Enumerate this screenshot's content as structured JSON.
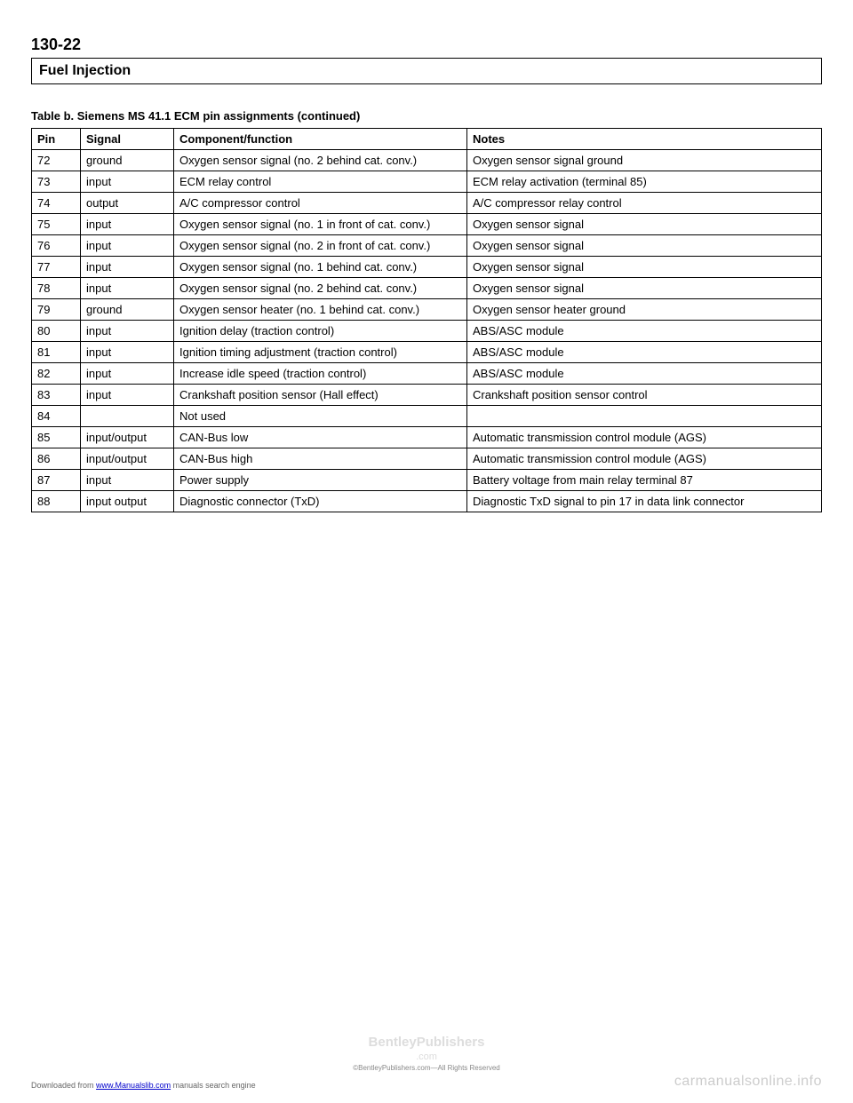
{
  "pageNumber": "130-22",
  "sectionTitle": "Fuel Injection",
  "tableCaption": "Table b. Siemens MS 41.1 ECM pin assignments (continued)",
  "columns": [
    "Pin",
    "Signal",
    "Component/function",
    "Notes"
  ],
  "rows": [
    [
      "72",
      "ground",
      "Oxygen sensor signal (no. 2 behind cat. conv.)",
      "Oxygen sensor signal ground"
    ],
    [
      "73",
      "input",
      "ECM relay control",
      "ECM relay activation (terminal 85)"
    ],
    [
      "74",
      "output",
      "A/C compressor control",
      "A/C compressor relay control"
    ],
    [
      "75",
      "input",
      "Oxygen sensor signal (no. 1 in front of cat. conv.)",
      "Oxygen sensor signal"
    ],
    [
      "76",
      "input",
      "Oxygen sensor signal (no. 2 in front of cat. conv.)",
      "Oxygen sensor signal"
    ],
    [
      "77",
      "input",
      "Oxygen sensor signal (no. 1 behind cat. conv.)",
      "Oxygen sensor signal"
    ],
    [
      "78",
      "input",
      "Oxygen sensor signal (no. 2 behind cat. conv.)",
      "Oxygen sensor signal"
    ],
    [
      "79",
      "ground",
      "Oxygen sensor heater (no. 1 behind cat. conv.)",
      "Oxygen sensor heater ground"
    ],
    [
      "80",
      "input",
      "Ignition delay (traction control)",
      "ABS/ASC module"
    ],
    [
      "81",
      "input",
      "Ignition timing adjustment (traction control)",
      "ABS/ASC module"
    ],
    [
      "82",
      "input",
      "Increase idle speed (traction control)",
      "ABS/ASC module"
    ],
    [
      "83",
      "input",
      "Crankshaft position sensor (Hall effect)",
      "Crankshaft position sensor control"
    ],
    [
      "84",
      "",
      "Not used",
      ""
    ],
    [
      "85",
      "input/output",
      "CAN-Bus low",
      "Automatic transmission control module (AGS)"
    ],
    [
      "86",
      "input/output",
      "CAN-Bus high",
      "Automatic transmission control module (AGS)"
    ],
    [
      "87",
      "input",
      "Power supply",
      "Battery voltage from main relay terminal 87"
    ],
    [
      "88",
      "input output",
      "Diagnostic connector (TxD)",
      "Diagnostic TxD signal to pin 17 in data link connector"
    ]
  ],
  "watermark": "BentleyPublishers",
  "watermarkSub": ".com",
  "copyright": "©BentleyPublishers.com—All Rights Reserved",
  "footerLeftPrefix": "Downloaded from ",
  "footerLeftLink": "www.Manualslib.com",
  "footerLeftSuffix": " manuals search engine",
  "footerRight": "carmanualsonline.info"
}
